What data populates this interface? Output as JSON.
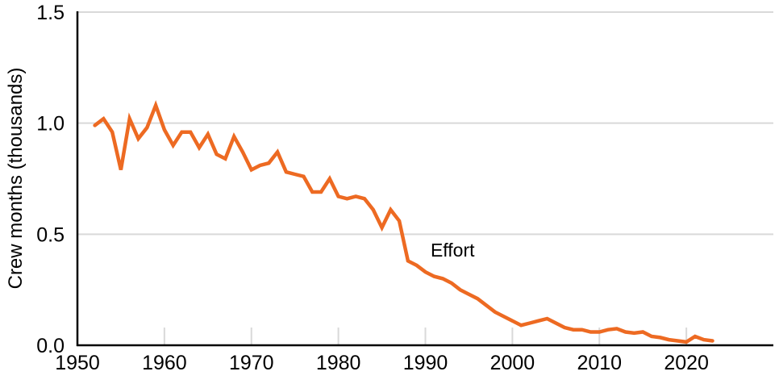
{
  "chart_data": {
    "type": "line",
    "title": "",
    "xlabel": "",
    "ylabel": "Crew months (thousands)",
    "xlim": [
      1950,
      2030
    ],
    "ylim": [
      0.0,
      1.5
    ],
    "grid": "horizontal-only",
    "legend_position": "none",
    "colors": {
      "line": "#ED6A22",
      "grid": "#D9D9D9",
      "axis": "#000000",
      "text": "#000000",
      "background": "#FFFFFF"
    },
    "yticks": [
      0.0,
      0.5,
      1.0,
      1.5
    ],
    "ytick_labels": [
      "0.0",
      "0.5",
      "1.0",
      "1.5"
    ],
    "xtick_label_years": [
      1950,
      1960,
      1970,
      1980,
      1990,
      2000,
      2010,
      2020
    ],
    "xtick_labels": [
      "1950",
      "1960",
      "1970",
      "1980",
      "1990",
      "2000",
      "2010",
      "2020"
    ],
    "xtick_mark_years": [
      1960,
      1970,
      1980,
      1990,
      2000,
      2010,
      2020
    ],
    "annotation": {
      "text": "Effort",
      "x": 1990.6,
      "y": 0.4
    },
    "series": [
      {
        "name": "Effort",
        "x": [
          1952,
          1953,
          1954,
          1955,
          1956,
          1957,
          1958,
          1959,
          1960,
          1961,
          1962,
          1963,
          1964,
          1965,
          1966,
          1967,
          1968,
          1969,
          1970,
          1971,
          1972,
          1973,
          1974,
          1975,
          1976,
          1977,
          1978,
          1979,
          1980,
          1981,
          1982,
          1983,
          1984,
          1985,
          1986,
          1987,
          1988,
          1989,
          1990,
          1991,
          1992,
          1993,
          1994,
          1995,
          1996,
          1997,
          1998,
          1999,
          2000,
          2001,
          2002,
          2003,
          2004,
          2005,
          2006,
          2007,
          2008,
          2009,
          2010,
          2011,
          2012,
          2013,
          2014,
          2015,
          2016,
          2017,
          2018,
          2019,
          2020,
          2021,
          2022,
          2023
        ],
        "values": [
          0.99,
          1.02,
          0.96,
          0.79,
          1.02,
          0.93,
          0.98,
          1.08,
          0.97,
          0.9,
          0.96,
          0.96,
          0.89,
          0.95,
          0.86,
          0.84,
          0.94,
          0.87,
          0.79,
          0.81,
          0.82,
          0.87,
          0.78,
          0.77,
          0.76,
          0.69,
          0.69,
          0.75,
          0.67,
          0.66,
          0.67,
          0.66,
          0.61,
          0.53,
          0.61,
          0.56,
          0.38,
          0.36,
          0.33,
          0.31,
          0.3,
          0.28,
          0.25,
          0.23,
          0.21,
          0.18,
          0.15,
          0.13,
          0.11,
          0.09,
          0.1,
          0.11,
          0.12,
          0.1,
          0.08,
          0.07,
          0.07,
          0.06,
          0.06,
          0.07,
          0.075,
          0.06,
          0.055,
          0.06,
          0.04,
          0.035,
          0.025,
          0.02,
          0.015,
          0.04,
          0.025,
          0.02
        ]
      }
    ]
  }
}
